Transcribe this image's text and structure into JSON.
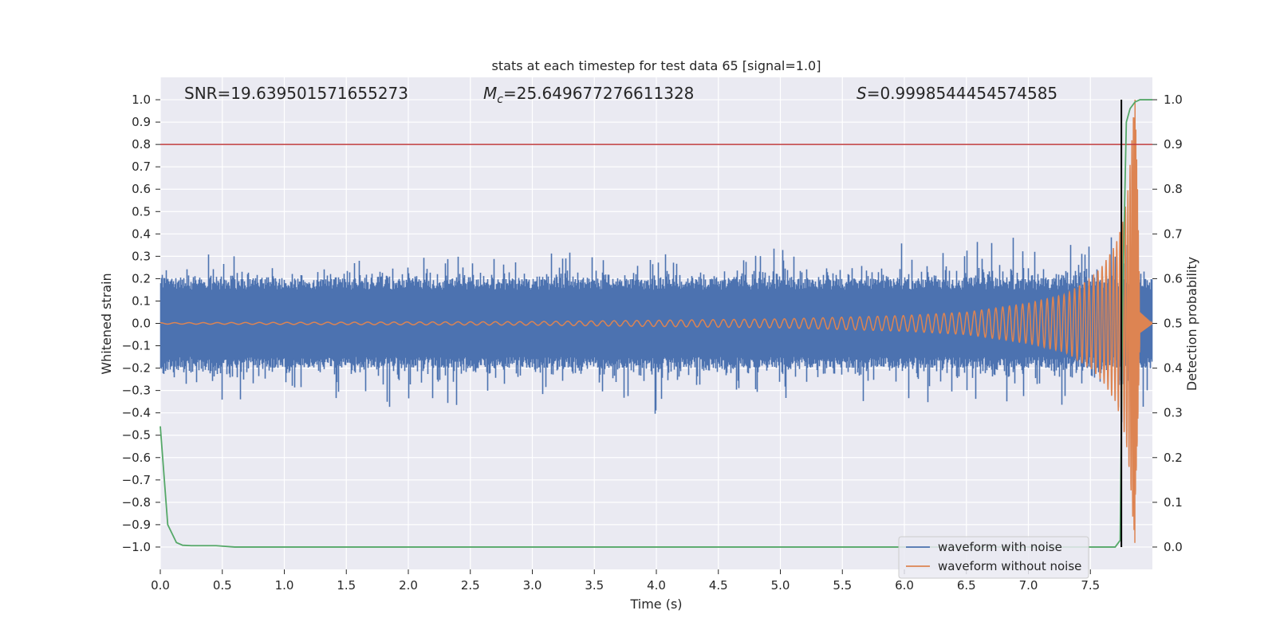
{
  "chart_data": {
    "type": "line",
    "title": "stats at each timestep for test data 65 [signal=1.0]",
    "xlabel": "Time (s)",
    "ylabel": "Whitened strain",
    "y2label": "Detection probability",
    "xlim": [
      0.0,
      8.0
    ],
    "ylim": [
      -1.1,
      1.1
    ],
    "y2lim": [
      -0.05,
      1.05
    ],
    "x_ticks": [
      "0.0",
      "0.5",
      "1.0",
      "1.5",
      "2.0",
      "2.5",
      "3.0",
      "3.5",
      "4.0",
      "4.5",
      "5.0",
      "5.5",
      "6.0",
      "6.5",
      "7.0",
      "7.5"
    ],
    "y_ticks": [
      "1.0",
      "0.9",
      "0.8",
      "0.7",
      "0.6",
      "0.5",
      "0.4",
      "0.3",
      "0.2",
      "0.1",
      "0.0",
      "−0.1",
      "−0.2",
      "−0.3",
      "−0.4",
      "−0.5",
      "−0.6",
      "−0.7",
      "−0.8",
      "−0.9",
      "−1.0"
    ],
    "y2_ticks": [
      "1.0",
      "0.9",
      "0.8",
      "0.7",
      "0.6",
      "0.5",
      "0.4",
      "0.3",
      "0.2",
      "0.1",
      "0.0"
    ],
    "annotations": {
      "snr": "SNR=19.639501571655273",
      "mc_symbol": "M",
      "mc_sub": "c",
      "mc_value": "=25.649677276611328",
      "s_symbol": "S",
      "s_value": "=0.9998544454574585"
    },
    "threshold": {
      "y2": 0.9,
      "color": "#c03d3e"
    },
    "detection_time": 7.75,
    "series": [
      {
        "name": "waveform with noise",
        "color": "#4c72b0",
        "envelope": [
          [
            0.0,
            0.28,
            -0.3
          ],
          [
            0.25,
            0.27,
            -0.32
          ],
          [
            0.5,
            0.35,
            -0.38
          ],
          [
            0.75,
            0.27,
            -0.36
          ],
          [
            1.0,
            0.28,
            -0.3
          ],
          [
            1.25,
            0.27,
            -0.3
          ],
          [
            1.5,
            0.32,
            -0.35
          ],
          [
            1.63,
            0.42,
            -0.3
          ],
          [
            1.75,
            0.3,
            -0.35
          ],
          [
            1.86,
            0.3,
            -0.43
          ],
          [
            2.0,
            0.35,
            -0.35
          ],
          [
            2.33,
            0.3,
            -0.42
          ],
          [
            2.5,
            0.3,
            -0.3
          ],
          [
            3.0,
            0.3,
            -0.32
          ],
          [
            3.25,
            0.33,
            -0.35
          ],
          [
            3.5,
            0.3,
            -0.3
          ],
          [
            3.98,
            0.3,
            -0.41
          ],
          [
            4.25,
            0.33,
            -0.33
          ],
          [
            4.5,
            0.3,
            -0.3
          ],
          [
            5.0,
            0.35,
            -0.35
          ],
          [
            5.5,
            0.32,
            -0.35
          ],
          [
            6.0,
            0.38,
            -0.38
          ],
          [
            6.5,
            0.34,
            -0.35
          ],
          [
            6.8,
            0.43,
            -0.35
          ],
          [
            7.0,
            0.35,
            -0.38
          ],
          [
            7.3,
            0.36,
            -0.38
          ],
          [
            7.5,
            0.35,
            -0.38
          ],
          [
            7.65,
            0.38,
            -0.4
          ],
          [
            7.75,
            0.45,
            -0.45
          ],
          [
            7.8,
            0.58,
            -0.6
          ],
          [
            7.84,
            0.78,
            -0.9
          ],
          [
            7.86,
            0.95,
            -1.0
          ],
          [
            7.88,
            0.7,
            -0.8
          ],
          [
            7.9,
            0.4,
            -0.45
          ],
          [
            8.0,
            0.2,
            -0.25
          ]
        ]
      },
      {
        "name": "waveform without noise",
        "color": "#dd8452",
        "amplitude_points": [
          [
            0.0,
            0.003
          ],
          [
            3.0,
            0.008
          ],
          [
            5.0,
            0.02
          ],
          [
            6.0,
            0.035
          ],
          [
            6.5,
            0.05
          ],
          [
            7.0,
            0.09
          ],
          [
            7.3,
            0.13
          ],
          [
            7.5,
            0.2
          ],
          [
            7.6,
            0.26
          ],
          [
            7.7,
            0.35
          ],
          [
            7.76,
            0.45
          ],
          [
            7.8,
            0.58
          ],
          [
            7.83,
            0.78
          ],
          [
            7.85,
            0.95
          ],
          [
            7.86,
            1.0
          ],
          [
            7.88,
            0.6
          ],
          [
            7.9,
            0.05
          ],
          [
            8.0,
            0.0
          ]
        ],
        "cycles_before_merger": 108,
        "merger_time": 7.86
      },
      {
        "name": "detection probability",
        "color": "#55a868",
        "axis": "y2",
        "x": [
          0.0,
          0.06,
          0.13,
          0.18,
          0.25,
          0.45,
          0.6,
          1.0,
          2.0,
          3.0,
          4.0,
          5.0,
          6.0,
          7.0,
          7.7,
          7.74,
          7.76,
          7.79,
          7.82,
          7.86,
          7.9,
          7.95,
          8.0
        ],
        "y": [
          0.27,
          0.05,
          0.01,
          0.004,
          0.003,
          0.003,
          0.0,
          0.0,
          0.0,
          0.0,
          0.0,
          0.0,
          0.0,
          0.0,
          0.0,
          0.015,
          0.55,
          0.95,
          0.98,
          0.995,
          1.0,
          1.0,
          1.0
        ]
      }
    ],
    "legend": {
      "position": "lower-right",
      "entries": [
        "waveform with noise",
        "waveform without noise"
      ]
    }
  }
}
